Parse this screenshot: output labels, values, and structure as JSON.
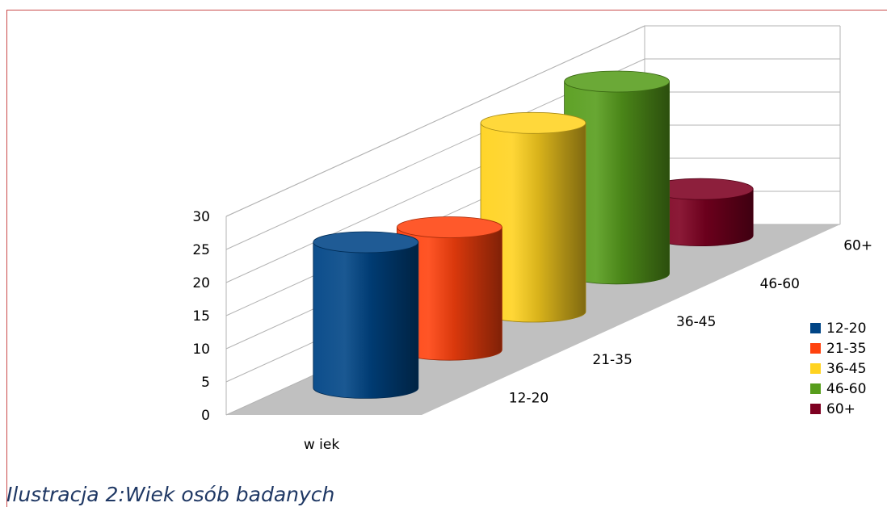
{
  "chart_data": {
    "type": "bar",
    "style": "3d-cylinder",
    "title": "",
    "xlabel": "wiek",
    "ylabel": "",
    "ylim": [
      0,
      30
    ],
    "yticks": [
      "0",
      "5",
      "10",
      "15",
      "20",
      "25",
      "30"
    ],
    "category_label": "w iek",
    "depth_labels": [
      "12-20",
      "21-35",
      "36-45",
      "46-60",
      "60+"
    ],
    "series": [
      {
        "name": "12-20",
        "values": [
          22
        ],
        "color": "#004586"
      },
      {
        "name": "21-35",
        "values": [
          18.5
        ],
        "color": "#ff420e"
      },
      {
        "name": "36-45",
        "values": [
          28.5
        ],
        "color": "#ffd320"
      },
      {
        "name": "46-60",
        "values": [
          29
        ],
        "color": "#579d1c"
      },
      {
        "name": "60+",
        "values": [
          7
        ],
        "color": "#7e0021"
      }
    ],
    "legend_position": "right",
    "grid": true
  },
  "caption": "Ilustracja 2:Wiek osób badanych"
}
